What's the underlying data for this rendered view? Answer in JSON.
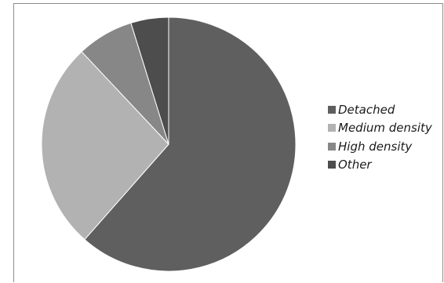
{
  "chart_data": {
    "type": "pie",
    "title": "",
    "categories": [
      "Detached",
      "Medium density",
      "High density",
      "Other"
    ],
    "values": [
      61.5,
      26.5,
      7.2,
      4.8
    ],
    "colors": [
      "#5f5f5f",
      "#b2b2b2",
      "#878787",
      "#4d4d4d"
    ],
    "legend_position": "right"
  }
}
